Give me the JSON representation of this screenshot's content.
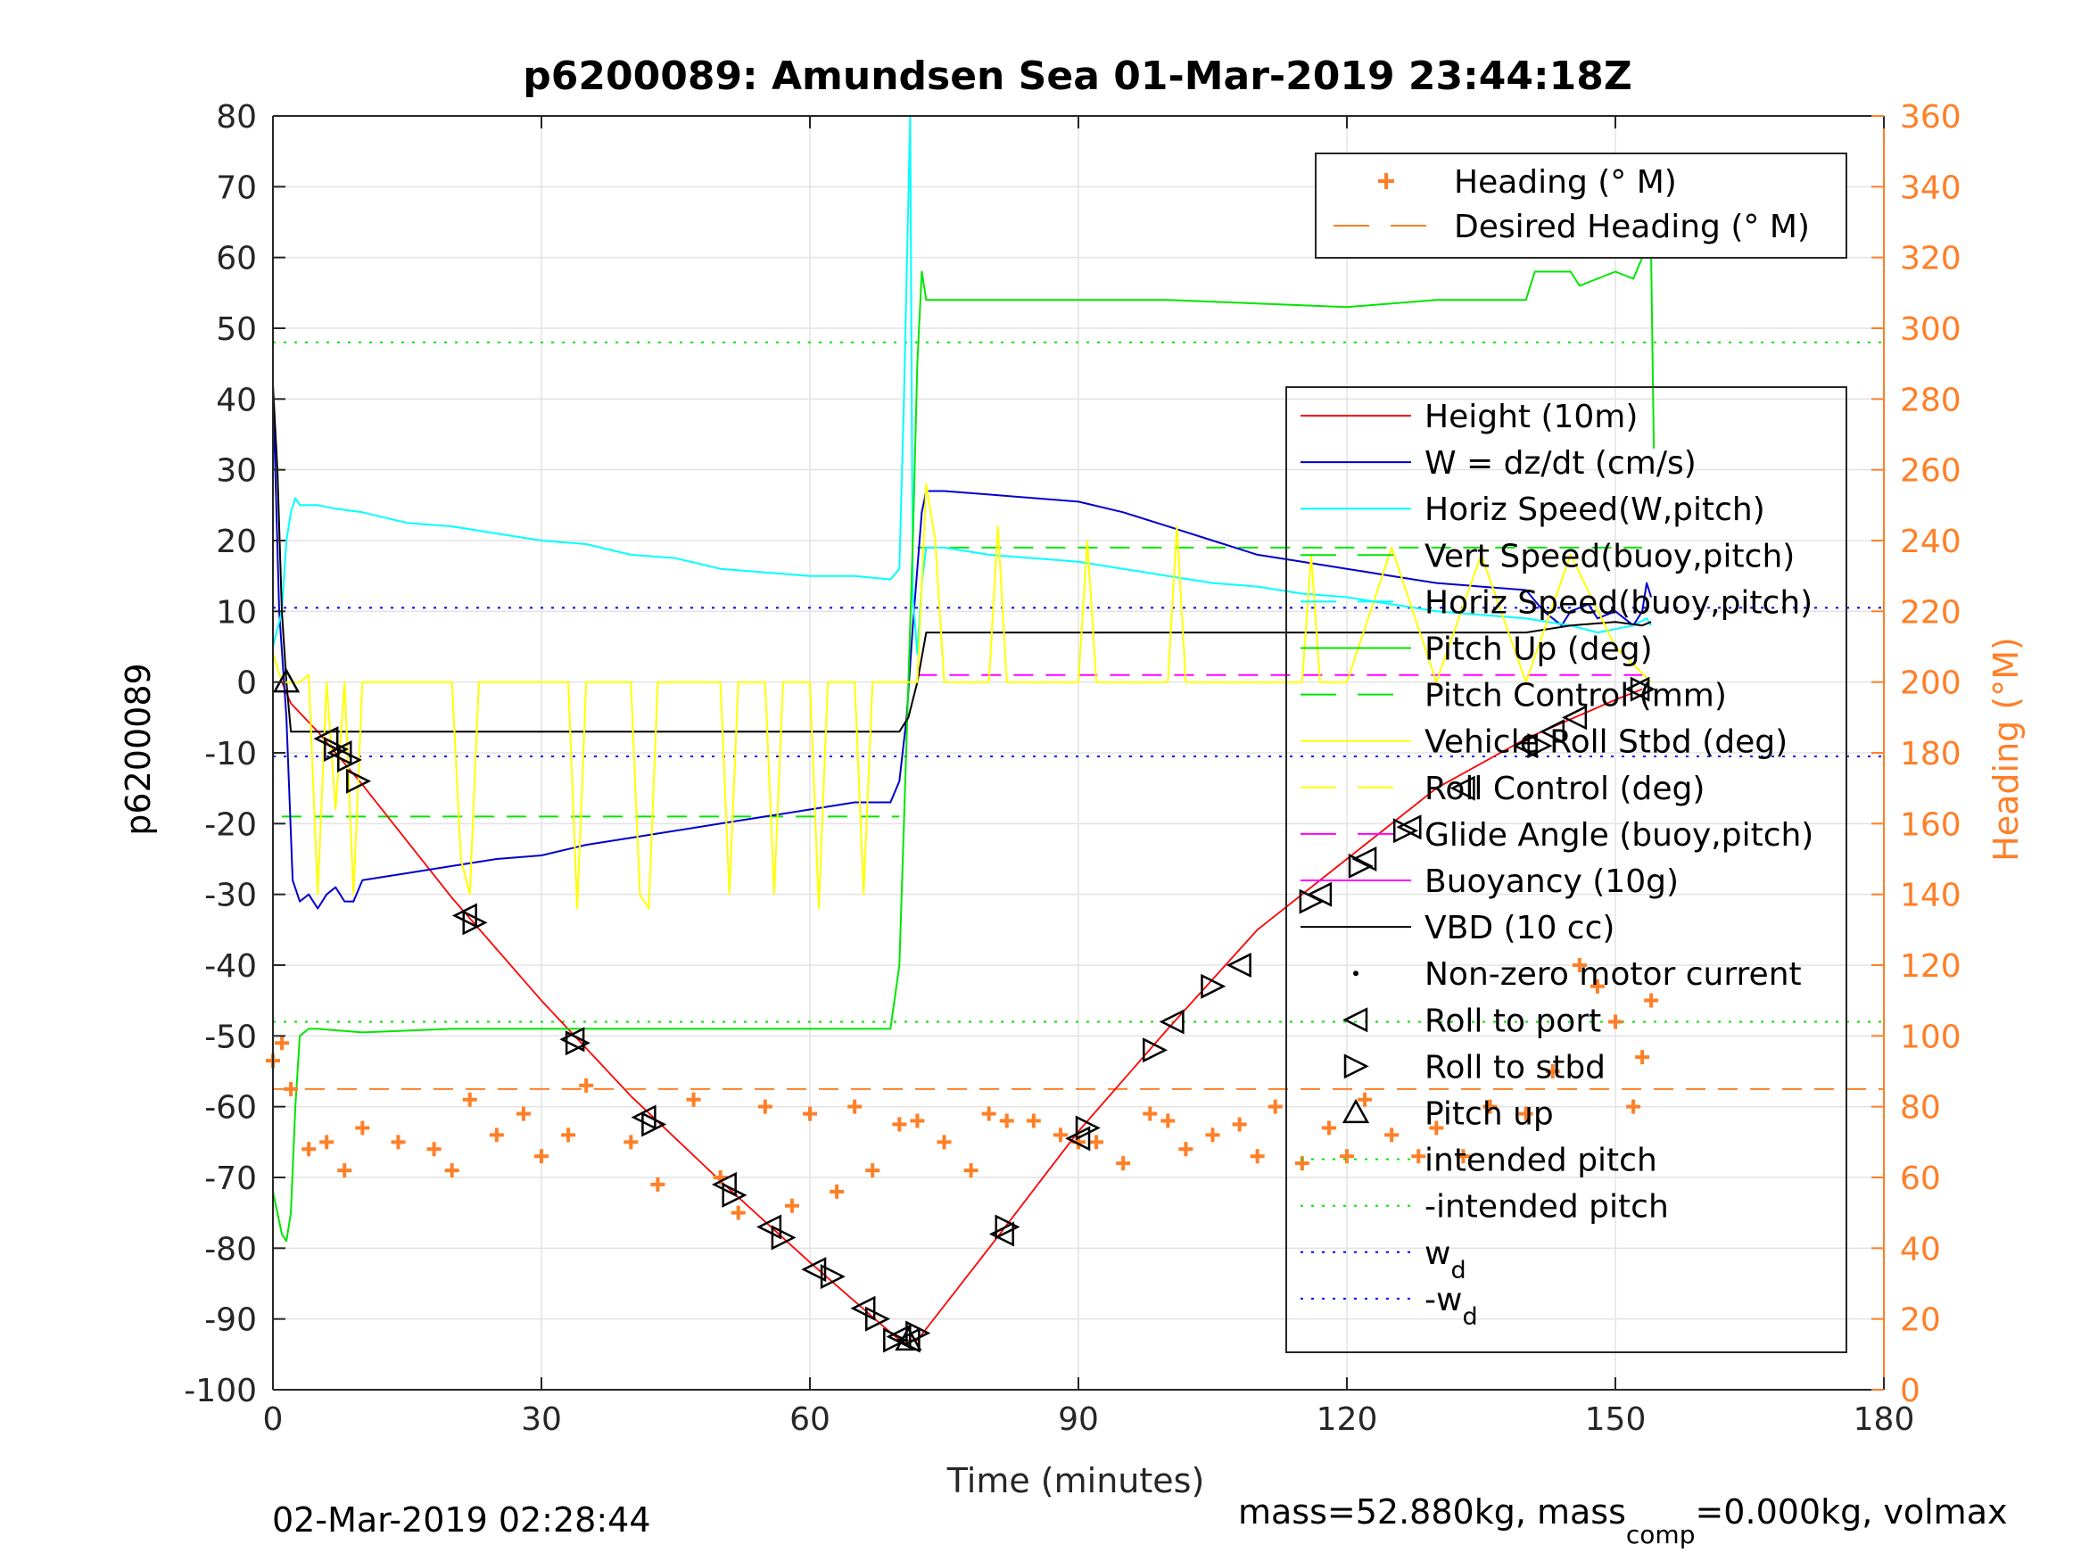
{
  "chart_data": {
    "type": "line",
    "title": "p6200089: Amundsen Sea 01-Mar-2019 23:44:18Z",
    "xlabel": "Time (minutes)",
    "ylabel": "p6200089",
    "ylabel_right": "Heading (°M)",
    "xlim": [
      0,
      180
    ],
    "ylim": [
      -100,
      80
    ],
    "ylim_right": [
      0,
      360
    ],
    "xticks": [
      "0",
      "30",
      "60",
      "90",
      "120",
      "150",
      "180"
    ],
    "yticks": [
      "80",
      "70",
      "60",
      "50",
      "40",
      "30",
      "20",
      "10",
      "0",
      "-10",
      "-20",
      "-30",
      "-40",
      "-50",
      "-60",
      "-70",
      "-80",
      "-90",
      "-100"
    ],
    "yticks_right": [
      "360",
      "340",
      "320",
      "300",
      "280",
      "260",
      "240",
      "220",
      "200",
      "180",
      "160",
      "140",
      "120",
      "100",
      "80",
      "60",
      "40",
      "20",
      "0"
    ],
    "grid": true,
    "footer_left": "02-Mar-2019 02:28:44",
    "footer_right_a": "mass=52.880kg, mass",
    "footer_right_sub": "comp",
    "footer_right_b": "=0.000kg, volmax",
    "colors": {
      "height": "#ff0000",
      "w": "#0000cc",
      "horiz_speed": "#00ffff",
      "pitch": "#00e600",
      "roll": "#ffff00",
      "glide": "#ff00ff",
      "vbd": "#000000",
      "heading": "#ff7f27",
      "right_axis": "#ff7f27"
    },
    "legend_top": [
      {
        "label": "Heading (° M)",
        "style": "plus"
      },
      {
        "label": "Desired Heading (° M)",
        "style": "dash"
      }
    ],
    "legend_main": [
      {
        "label": "Height (10m)",
        "style": "solid",
        "color": "#ff0000"
      },
      {
        "label": "W = dz/dt (cm/s)",
        "style": "solid",
        "color": "#0000cc"
      },
      {
        "label": "Horiz Speed(W,pitch)",
        "style": "solid",
        "color": "#00ffff"
      },
      {
        "label": "Vert Speed(buoy,pitch)",
        "style": "dash",
        "color": "#00e600"
      },
      {
        "label": "Horiz Speed(buoy,pitch)",
        "style": "dash",
        "color": "#00ffff"
      },
      {
        "label": "Pitch Up (deg)",
        "style": "solid",
        "color": "#00e600"
      },
      {
        "label": "Pitch Control (mm)",
        "style": "dash",
        "color": "#00e600"
      },
      {
        "label": "Vehicle Roll Stbd (deg)",
        "style": "solid",
        "color": "#ffff00"
      },
      {
        "label": "Roll Control (deg)",
        "style": "dash",
        "color": "#ffff00"
      },
      {
        "label": "Glide Angle (buoy,pitch)",
        "style": "dash",
        "color": "#ff00ff"
      },
      {
        "label": "Buoyancy (10g)",
        "style": "solid",
        "color": "#ff00ff"
      },
      {
        "label": "VBD (10 cc)",
        "style": "solid",
        "color": "#000000"
      },
      {
        "label": "Non-zero motor current",
        "style": "dot",
        "color": "#000000"
      },
      {
        "label": "Roll to port",
        "style": "tri-left",
        "color": "#000000"
      },
      {
        "label": "Roll to stbd",
        "style": "tri-right",
        "color": "#000000"
      },
      {
        "label": "Pitch up",
        "style": "tri-up",
        "color": "#000000"
      },
      {
        "label": "intended pitch",
        "style": "dot-line",
        "color": "#00e600"
      },
      {
        "label": "-intended pitch",
        "style": "dot-line",
        "color": "#00e600"
      },
      {
        "label": "w",
        "sub": "d",
        "style": "dot-line",
        "color": "#0000ff"
      },
      {
        "label": "-w",
        "sub": "d",
        "style": "dot-line",
        "color": "#0000ff"
      }
    ],
    "reference_lines": {
      "intended_pitch": 48,
      "neg_intended_pitch": -48,
      "wd": 10.5,
      "neg_wd": -10.5,
      "desired_heading": 85,
      "pitch_control_dive": -19,
      "pitch_control_climb": 19,
      "glide_angle_climb": 1
    },
    "series": [
      {
        "key": "height",
        "name": "Height (10m)",
        "axis": "left",
        "x": [
          1,
          2,
          5,
          10,
          20,
          30,
          40,
          50,
          60,
          70,
          72,
          80,
          90,
          100,
          110,
          120,
          130,
          140,
          150,
          153
        ],
        "y": [
          0,
          -3,
          -7,
          -14.5,
          -30.5,
          -45,
          -58.5,
          -70.5,
          -82,
          -93,
          -93,
          -80,
          -63.5,
          -49,
          -35,
          -25,
          -15,
          -8,
          -2.5,
          -1
        ]
      },
      {
        "key": "w",
        "name": "W = dz/dt (cm/s)",
        "axis": "left",
        "x": [
          0,
          0.7,
          1.5,
          2.2,
          3,
          4,
          5,
          6,
          7,
          8,
          9,
          10,
          15,
          20,
          25,
          30,
          35,
          40,
          45,
          50,
          55,
          60,
          65,
          69,
          70,
          70.8,
          71.5,
          72.5,
          73,
          75,
          80,
          85,
          90,
          95,
          100,
          105,
          110,
          115,
          120,
          125,
          130,
          135,
          140,
          142,
          144,
          145,
          147,
          148,
          150,
          152,
          153,
          153.5,
          154
        ],
        "y": [
          42,
          10,
          -5,
          -28,
          -31,
          -30,
          -32,
          -30,
          -29,
          -31,
          -31,
          -28,
          -27,
          -26,
          -25,
          -24.5,
          -23,
          -22,
          -21,
          -20,
          -19,
          -18,
          -17,
          -17,
          -14,
          -5,
          8,
          24,
          27,
          27,
          26.5,
          26,
          25.5,
          24,
          22,
          20,
          18,
          17,
          16,
          15,
          14,
          13.5,
          13,
          10,
          8,
          10,
          11,
          9,
          10,
          8,
          10,
          14,
          12
        ]
      },
      {
        "key": "horiz_speed",
        "name": "Horiz Speed(W,pitch)",
        "axis": "left",
        "x": [
          0,
          1,
          1.5,
          2,
          2.5,
          3,
          5,
          7,
          10,
          15,
          20,
          25,
          30,
          35,
          40,
          45,
          50,
          55,
          60,
          65,
          69,
          70,
          70.5,
          71.2,
          71.5,
          72,
          72.5,
          73,
          75,
          80,
          85,
          90,
          95,
          100,
          105,
          110,
          115,
          120,
          125,
          130,
          135,
          140,
          145,
          148,
          150,
          152,
          153.5,
          154
        ],
        "y": [
          5,
          10,
          20,
          24,
          26,
          25,
          25,
          24.5,
          24,
          22.5,
          22,
          21,
          20,
          19.5,
          18,
          17.5,
          16,
          15.5,
          15,
          15,
          14.5,
          16,
          40,
          80,
          12,
          4,
          14,
          19,
          19,
          18,
          17.5,
          17,
          16,
          15,
          14,
          13.5,
          12.5,
          12,
          11,
          10,
          9.5,
          9,
          8,
          7,
          7.5,
          8,
          9,
          8
        ]
      },
      {
        "key": "pitch",
        "name": "Pitch Up (deg)",
        "axis": "left",
        "x": [
          0,
          1,
          1.5,
          2,
          2.5,
          3,
          4,
          5,
          10,
          20,
          30,
          40,
          50,
          60,
          68,
          69,
          70,
          70.5,
          71,
          71.5,
          72,
          72.5,
          73,
          75,
          80,
          90,
          100,
          110,
          120,
          130,
          140,
          141,
          145,
          146,
          150,
          152,
          153,
          153.5,
          154,
          154.3
        ],
        "y": [
          -72,
          -78,
          -79,
          -75,
          -60,
          -50,
          -49,
          -49,
          -49.5,
          -49,
          -49,
          -49,
          -49,
          -49,
          -49,
          -49,
          -40,
          -20,
          0,
          20,
          45,
          58,
          54,
          54,
          54,
          54,
          54,
          53.5,
          53,
          54,
          54,
          58,
          58,
          56,
          58,
          57,
          60,
          61,
          60,
          33
        ]
      },
      {
        "key": "vbd",
        "name": "VBD (10 cc)",
        "axis": "left",
        "x": [
          0,
          0.5,
          1,
          1.5,
          2,
          5,
          30,
          60,
          70,
          71,
          72,
          73,
          80,
          100,
          120,
          140,
          145,
          150,
          153,
          154
        ],
        "y": [
          42,
          30,
          10,
          0,
          -7,
          -7,
          -7,
          -7,
          -7,
          -5,
          0,
          7,
          7,
          7,
          7,
          7,
          8,
          8.5,
          8,
          8.5
        ]
      },
      {
        "key": "roll",
        "name": "Vehicle Roll Stbd (deg)",
        "axis": "left",
        "x": [
          0,
          1,
          2,
          3,
          4,
          5,
          6,
          7,
          8,
          9,
          10,
          20,
          21,
          22,
          23,
          30,
          33,
          34,
          35,
          40,
          41,
          42,
          43,
          50,
          51,
          52,
          53,
          55,
          56,
          57,
          58,
          60,
          61,
          62,
          63,
          65,
          66,
          67,
          68,
          70,
          72,
          73,
          74,
          75,
          76,
          80,
          81,
          82,
          83,
          90,
          91,
          92,
          93,
          100,
          101,
          102,
          103,
          110,
          115,
          116,
          117,
          120,
          125,
          130,
          135,
          140,
          145,
          150,
          154
        ],
        "y": [
          4,
          0,
          0,
          0,
          1,
          -30,
          0,
          -18,
          0,
          -30,
          0,
          0,
          -25,
          -30,
          0,
          0,
          0,
          -32,
          0,
          0,
          -30,
          -32,
          0,
          0,
          -30,
          0,
          0,
          0,
          -30,
          0,
          0,
          0,
          -32,
          0,
          0,
          0,
          -30,
          0,
          0,
          0,
          0,
          28,
          20,
          0,
          0,
          0,
          22,
          0,
          0,
          0,
          20,
          0,
          0,
          0,
          22,
          0,
          0,
          0,
          0,
          18,
          0,
          0,
          19,
          0,
          18,
          0,
          18,
          5,
          0
        ]
      },
      {
        "key": "heading",
        "name": "Heading (° M)",
        "axis": "right",
        "x": [
          0,
          1,
          2,
          4,
          6,
          8,
          10,
          14,
          18,
          20,
          22,
          25,
          28,
          30,
          33,
          35,
          40,
          43,
          47,
          50,
          52,
          55,
          58,
          60,
          63,
          65,
          67,
          70,
          72,
          75,
          78,
          80,
          82,
          85,
          88,
          90,
          92,
          95,
          98,
          100,
          102,
          105,
          108,
          110,
          112,
          115,
          118,
          120,
          122,
          125,
          128,
          130,
          133,
          136,
          140,
          143,
          146,
          148,
          150,
          152,
          153,
          154
        ],
        "y": [
          93,
          98,
          85,
          68,
          70,
          62,
          74,
          70,
          68,
          62,
          82,
          72,
          78,
          66,
          72,
          86,
          70,
          58,
          82,
          60,
          50,
          80,
          52,
          78,
          56,
          80,
          62,
          75,
          76,
          70,
          62,
          78,
          76,
          76,
          72,
          70,
          70,
          64,
          78,
          76,
          68,
          72,
          75,
          66,
          80,
          64,
          74,
          66,
          82,
          72,
          66,
          74,
          66,
          80,
          78,
          90,
          120,
          114,
          104,
          80,
          94,
          110
        ]
      }
    ],
    "roll_port_markers": [
      [
        6,
        -8
      ],
      [
        7.5,
        -10
      ],
      [
        21.5,
        -33
      ],
      [
        33.5,
        -50.5
      ],
      [
        41.5,
        -61.5
      ],
      [
        50.5,
        -71
      ],
      [
        55.5,
        -77
      ],
      [
        60.5,
        -83
      ],
      [
        66,
        -88.5
      ],
      [
        70,
        -92.5
      ],
      [
        71,
        -93
      ],
      [
        81.5,
        -78
      ],
      [
        90,
        -64.5
      ],
      [
        100.5,
        -48
      ],
      [
        108,
        -40
      ],
      [
        117,
        -30
      ],
      [
        122,
        -25
      ],
      [
        127,
        -20.5
      ],
      [
        133,
        -15
      ],
      [
        140,
        -9
      ],
      [
        143,
        -7
      ],
      [
        145.5,
        -5
      ],
      [
        152.5,
        -1
      ]
    ],
    "roll_stbd_markers": [
      [
        7,
        -9.5
      ],
      [
        8.5,
        -11
      ],
      [
        9.5,
        -14
      ],
      [
        22.5,
        -34
      ],
      [
        34,
        -51
      ],
      [
        42.5,
        -62.5
      ],
      [
        51.5,
        -72.5
      ],
      [
        57,
        -78.5
      ],
      [
        62.5,
        -84
      ],
      [
        67.5,
        -90
      ],
      [
        69.5,
        -93
      ],
      [
        72,
        -92
      ],
      [
        82,
        -77
      ],
      [
        91,
        -63
      ],
      [
        98.5,
        -52
      ],
      [
        105,
        -43
      ],
      [
        116,
        -31
      ],
      [
        121.5,
        -26
      ],
      [
        126.5,
        -21
      ],
      [
        141.5,
        -9
      ],
      [
        153,
        -1
      ]
    ],
    "pitch_up_markers": [
      [
        1.5,
        0
      ],
      [
        71,
        -93
      ]
    ]
  }
}
